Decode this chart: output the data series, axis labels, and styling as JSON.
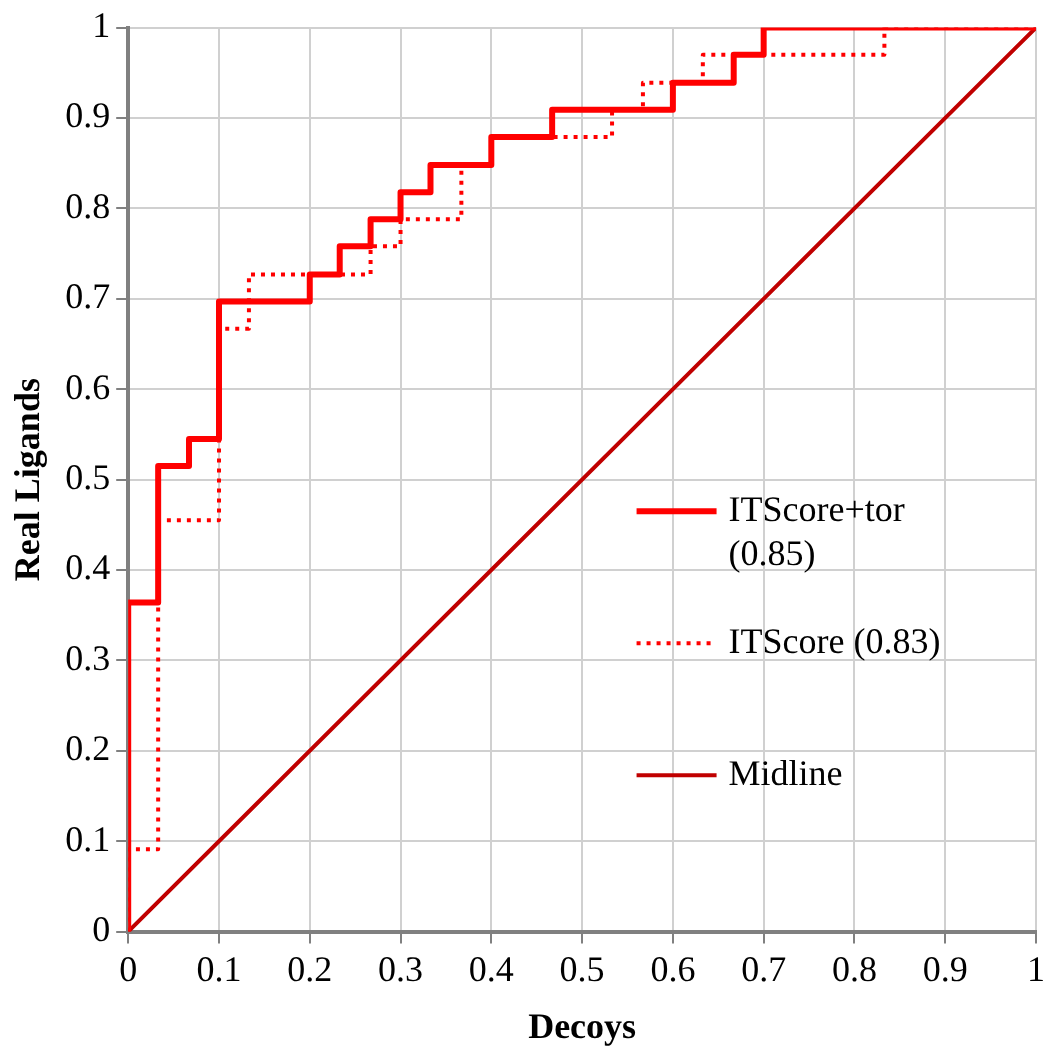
{
  "chart_data": {
    "type": "step",
    "xlabel": "Decoys",
    "ylabel": "Real Ligands",
    "xlim": [
      0,
      1
    ],
    "ylim": [
      0,
      1
    ],
    "xticks": [
      0,
      0.1,
      0.2,
      0.3,
      0.4,
      0.5,
      0.6,
      0.7,
      0.8,
      0.9,
      1
    ],
    "yticks": [
      0,
      0.1,
      0.2,
      0.3,
      0.4,
      0.5,
      0.6,
      0.7,
      0.8,
      0.9,
      1
    ],
    "grid": true,
    "legend": "right",
    "marker": "none",
    "series": [
      {
        "name": "ITScore+tor (0.85)",
        "color": "#ff0000",
        "line_style": "solid",
        "x": [
          0,
          0,
          0.033,
          0.067,
          0.1,
          0.2,
          0.233,
          0.267,
          0.3,
          0.333,
          0.4,
          0.467,
          0.6,
          0.667,
          0.7,
          1
        ],
        "values": [
          0,
          0.364,
          0.515,
          0.545,
          0.697,
          0.727,
          0.758,
          0.788,
          0.818,
          0.848,
          0.879,
          0.909,
          0.939,
          0.97,
          1,
          1
        ]
      },
      {
        "name": "ITScore (0.83)",
        "color": "#ff0000",
        "line_style": "dotted",
        "x": [
          0,
          0,
          0.033,
          0.1,
          0.133,
          0.267,
          0.3,
          0.367,
          0.4,
          0.533,
          0.567,
          0.633,
          0.833,
          1
        ],
        "values": [
          0,
          0.091,
          0.455,
          0.667,
          0.727,
          0.758,
          0.788,
          0.848,
          0.879,
          0.909,
          0.939,
          0.97,
          1,
          1
        ]
      },
      {
        "name": "Midline",
        "type": "line",
        "color": "#c00000",
        "line_style": "solid",
        "x": [
          0,
          1
        ],
        "values": [
          0,
          1
        ]
      }
    ]
  }
}
